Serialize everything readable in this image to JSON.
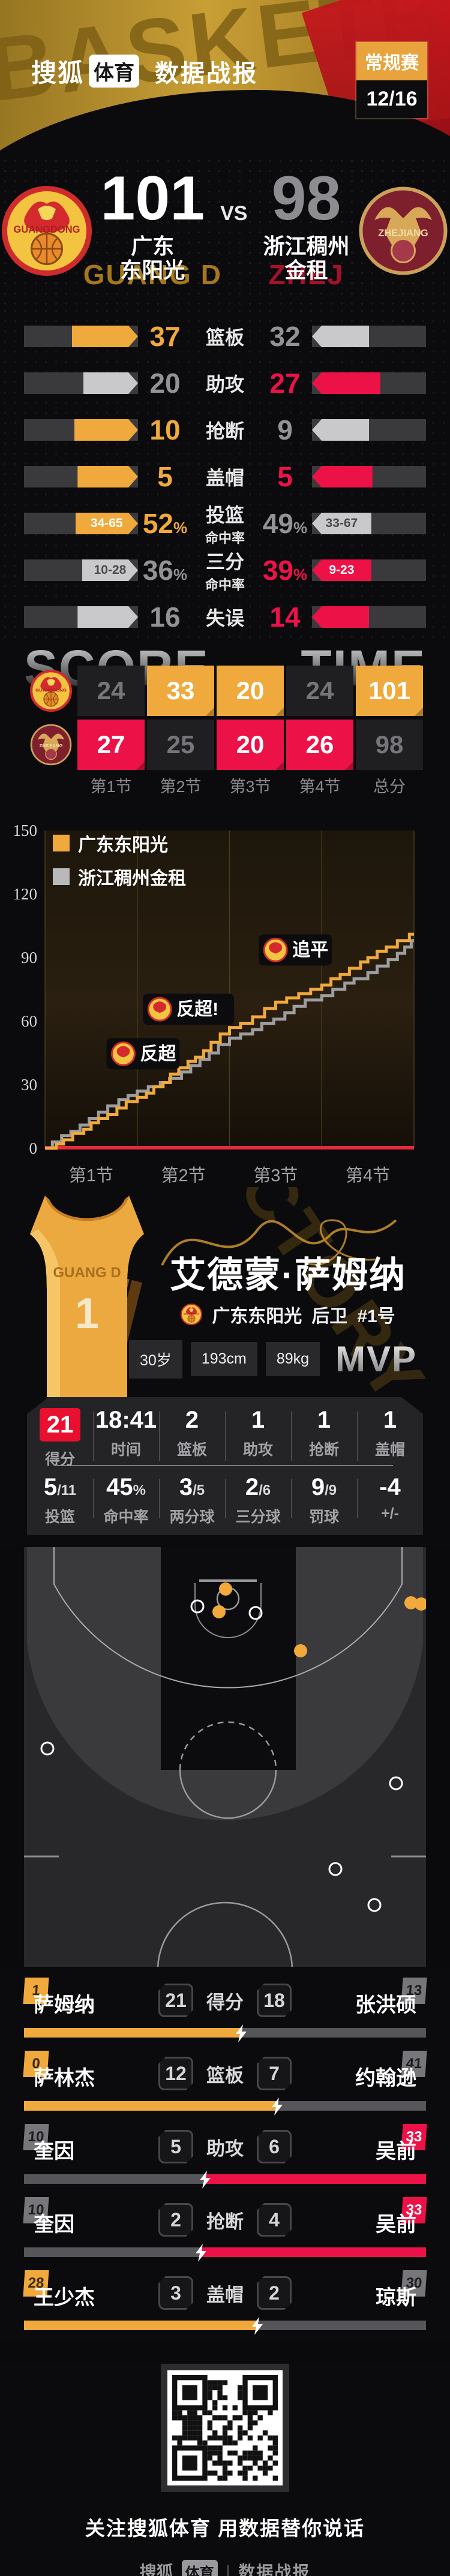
{
  "header": {
    "brand_sohu": "搜狐",
    "brand_sports": "体育",
    "brand_product": "数据战报",
    "stage_label": "常规赛",
    "date_label": "12/16",
    "ghost_text": "BASKETBALL"
  },
  "scoreboard": {
    "vs_label": "VS",
    "home": {
      "score": "101",
      "name_line1": "广东",
      "name_line2": "东阳光",
      "ghost": "GUANG D",
      "logo_text": "GUANGDONG"
    },
    "away": {
      "score": "98",
      "name_line1": "浙江稠州",
      "name_line2": "金租",
      "ghost": "ZHEJ",
      "logo_text": "ZHEJIANG"
    }
  },
  "team_stats": {
    "rows": [
      {
        "label": [
          "篮板"
        ],
        "home": {
          "main": "37",
          "sub": ""
        },
        "away": {
          "main": "32",
          "sub": ""
        },
        "home_win": true,
        "away_win": false,
        "bar_home_text": "",
        "bar_away_text": "",
        "home_fill": 58,
        "away_fill": 50
      },
      {
        "label": [
          "助攻"
        ],
        "home": {
          "main": "20",
          "sub": ""
        },
        "away": {
          "main": "27",
          "sub": ""
        },
        "home_win": false,
        "away_win": true,
        "bar_home_text": "",
        "bar_away_text": "",
        "home_fill": 48,
        "away_fill": 60
      },
      {
        "label": [
          "抢断"
        ],
        "home": {
          "main": "10",
          "sub": ""
        },
        "away": {
          "main": "9",
          "sub": ""
        },
        "home_win": true,
        "away_win": false,
        "bar_home_text": "",
        "bar_away_text": "",
        "home_fill": 56,
        "away_fill": 50
      },
      {
        "label": [
          "盖帽"
        ],
        "home": {
          "main": "5",
          "sub": ""
        },
        "away": {
          "main": "5",
          "sub": ""
        },
        "home_win": true,
        "away_win": true,
        "bar_home_text": "",
        "bar_away_text": "",
        "home_fill": 53,
        "away_fill": 53
      },
      {
        "label": [
          "投篮",
          "命中率"
        ],
        "home": {
          "main": "52",
          "sub": "%"
        },
        "away": {
          "main": "49",
          "sub": "%"
        },
        "home_win": true,
        "away_win": false,
        "bar_home_text": "34-65",
        "bar_away_text": "33-67",
        "home_fill": 55,
        "away_fill": 52
      },
      {
        "label": [
          "三分",
          "命中率"
        ],
        "home": {
          "main": "36",
          "sub": "%"
        },
        "away": {
          "main": "39",
          "sub": "%"
        },
        "home_win": false,
        "away_win": true,
        "bar_home_text": "10-28",
        "bar_away_text": "9-23",
        "home_fill": 49,
        "away_fill": 52
      },
      {
        "label": [
          "失误"
        ],
        "home": {
          "main": "16",
          "sub": ""
        },
        "away": {
          "main": "14",
          "sub": ""
        },
        "home_win": false,
        "away_win": true,
        "bar_home_text": "",
        "bar_away_text": "",
        "home_fill": 53,
        "away_fill": 50
      }
    ]
  },
  "quarters": {
    "ghost_left": "SCORE",
    "ghost_right": "TIME",
    "labels": [
      "第1节",
      "第2节",
      "第3节",
      "第4节",
      "总分"
    ],
    "home_scores": [
      "24",
      "33",
      "20",
      "24",
      "101"
    ],
    "away_scores": [
      "27",
      "25",
      "20",
      "26",
      "98"
    ],
    "home_highlight": [
      false,
      true,
      true,
      false,
      true
    ],
    "away_highlight": [
      true,
      false,
      true,
      true,
      false
    ]
  },
  "chart_data": {
    "type": "line",
    "subtype": "step-score-progression",
    "legend": [
      {
        "label": "广东东阳光",
        "color": "#f0a93c"
      },
      {
        "label": "浙江稠州金租",
        "color": "#b9b9bc"
      }
    ],
    "ylim": [
      0,
      150
    ],
    "yticks": [
      0,
      30,
      60,
      90,
      120,
      150
    ],
    "x_labels": [
      "第1节",
      "第2节",
      "第3节",
      "第4节"
    ],
    "series": [
      {
        "name": "广东东阳光",
        "color": "#f0a93c",
        "steps": [
          [
            0,
            0
          ],
          [
            0.12,
            2
          ],
          [
            0.2,
            4
          ],
          [
            0.3,
            7
          ],
          [
            0.42,
            9
          ],
          [
            0.5,
            12
          ],
          [
            0.58,
            14
          ],
          [
            0.68,
            16
          ],
          [
            0.78,
            19
          ],
          [
            0.88,
            22
          ],
          [
            1,
            24
          ],
          [
            1.1,
            26
          ],
          [
            1.18,
            29
          ],
          [
            1.28,
            31
          ],
          [
            1.36,
            35
          ],
          [
            1.45,
            38
          ],
          [
            1.55,
            41
          ],
          [
            1.63,
            43
          ],
          [
            1.72,
            46
          ],
          [
            1.8,
            50
          ],
          [
            1.9,
            54
          ],
          [
            2,
            57
          ],
          [
            2.12,
            59
          ],
          [
            2.25,
            62
          ],
          [
            2.38,
            66
          ],
          [
            2.5,
            69
          ],
          [
            2.62,
            71
          ],
          [
            2.75,
            73
          ],
          [
            2.88,
            75
          ],
          [
            3,
            77
          ],
          [
            3.1,
            80
          ],
          [
            3.2,
            82
          ],
          [
            3.3,
            85
          ],
          [
            3.42,
            88
          ],
          [
            3.5,
            90
          ],
          [
            3.6,
            93
          ],
          [
            3.7,
            95
          ],
          [
            3.82,
            98
          ],
          [
            3.95,
            101
          ],
          [
            4,
            101
          ]
        ]
      },
      {
        "name": "浙江稠州金租",
        "color": "#9e9ea0",
        "steps": [
          [
            0,
            0
          ],
          [
            0.08,
            3
          ],
          [
            0.18,
            6
          ],
          [
            0.28,
            8
          ],
          [
            0.38,
            11
          ],
          [
            0.48,
            14
          ],
          [
            0.58,
            17
          ],
          [
            0.68,
            20
          ],
          [
            0.8,
            23
          ],
          [
            0.9,
            25
          ],
          [
            1,
            27
          ],
          [
            1.12,
            29
          ],
          [
            1.25,
            31
          ],
          [
            1.35,
            33
          ],
          [
            1.48,
            36
          ],
          [
            1.58,
            39
          ],
          [
            1.68,
            42
          ],
          [
            1.78,
            45
          ],
          [
            1.88,
            49
          ],
          [
            2,
            52
          ],
          [
            2.12,
            54
          ],
          [
            2.25,
            56
          ],
          [
            2.35,
            59
          ],
          [
            2.48,
            61
          ],
          [
            2.6,
            64
          ],
          [
            2.7,
            67
          ],
          [
            2.82,
            70
          ],
          [
            3,
            72
          ],
          [
            3.12,
            75
          ],
          [
            3.25,
            78
          ],
          [
            3.35,
            80
          ],
          [
            3.5,
            83
          ],
          [
            3.6,
            86
          ],
          [
            3.72,
            89
          ],
          [
            3.82,
            92
          ],
          [
            3.9,
            95
          ],
          [
            3.97,
            98
          ],
          [
            4,
            98
          ]
        ]
      }
    ],
    "annotations": [
      {
        "t": 1.33,
        "score": 35,
        "label": "反超"
      },
      {
        "t": 1.92,
        "score": 56,
        "label": "反超!"
      },
      {
        "t": 2.98,
        "score": 84,
        "label": "追平"
      }
    ]
  },
  "mvp": {
    "name": "艾德蒙·萨姆纳",
    "jersey": {
      "team": "GUANG D",
      "number": "1"
    },
    "team": "广东东阳光",
    "position": "后卫",
    "shirt_no": "#1号",
    "tags": [
      "30岁",
      "193cm",
      "89kg"
    ],
    "badge": "MVP",
    "ghost": "VICTORY",
    "stats_row1": [
      {
        "main": "21",
        "sub": "",
        "label": "得分",
        "highlight": true
      },
      {
        "main": "18:41",
        "sub": "",
        "label": "时间",
        "highlight": false
      },
      {
        "main": "2",
        "sub": "",
        "label": "篮板",
        "highlight": false
      },
      {
        "main": "1",
        "sub": "",
        "label": "助攻",
        "highlight": false
      },
      {
        "main": "1",
        "sub": "",
        "label": "抢断",
        "highlight": false
      },
      {
        "main": "1",
        "sub": "",
        "label": "盖帽",
        "highlight": false
      }
    ],
    "stats_row2": [
      {
        "main": "5",
        "sub": "/11",
        "label": "投篮",
        "highlight": false
      },
      {
        "main": "45",
        "sub": "%",
        "label": "命中率",
        "highlight": false
      },
      {
        "main": "3",
        "sub": "/5",
        "label": "两分球",
        "highlight": false
      },
      {
        "main": "2",
        "sub": "/6",
        "label": "三分球",
        "highlight": false
      },
      {
        "main": "9",
        "sub": "/9",
        "label": "罚球",
        "highlight": false
      },
      {
        "main": "-4",
        "sub": "",
        "label": "+/-",
        "highlight": false
      }
    ]
  },
  "shot_chart": {
    "made_color": "#f2a93b",
    "missed_style": "hollow-white",
    "made": [
      [
        336,
        70
      ],
      [
        325,
        108
      ],
      [
        645,
        93
      ],
      [
        662,
        95
      ],
      [
        461,
        173
      ]
    ],
    "missed": [
      [
        289,
        99
      ],
      [
        386,
        110
      ],
      [
        39,
        336
      ],
      [
        620,
        394
      ],
      [
        519,
        537
      ],
      [
        584,
        597
      ]
    ]
  },
  "leaders": {
    "rows": [
      {
        "stat": "得分",
        "home": {
          "name": "萨姆纳",
          "num": "1",
          "win": true,
          "value": "21"
        },
        "away": {
          "name": "张洪硕",
          "num": "13",
          "win": false,
          "value": "18"
        },
        "left_pct": 54
      },
      {
        "stat": "篮板",
        "home": {
          "name": "萨林杰",
          "num": "0",
          "win": true,
          "value": "12"
        },
        "away": {
          "name": "约翰逊",
          "num": "41",
          "win": false,
          "value": "7"
        },
        "left_pct": 63
      },
      {
        "stat": "助攻",
        "home": {
          "name": "奎因",
          "num": "10",
          "win": false,
          "value": "5"
        },
        "away": {
          "name": "吴前",
          "num": "33",
          "win": true,
          "value": "6"
        },
        "left_pct": 45
      },
      {
        "stat": "抢断",
        "home": {
          "name": "奎因",
          "num": "10",
          "win": false,
          "value": "2"
        },
        "away": {
          "name": "吴前",
          "num": "33",
          "win": true,
          "value": "4"
        },
        "left_pct": 44
      },
      {
        "stat": "盖帽",
        "home": {
          "name": "王少杰",
          "num": "28",
          "win": true,
          "value": "3"
        },
        "away": {
          "name": "琼斯",
          "num": "30",
          "win": false,
          "value": "2"
        },
        "left_pct": 58
      }
    ]
  },
  "footer": {
    "caption": "关注搜狐体育 用数据替你说话",
    "brand_sohu": "搜狐",
    "brand_sports": "体育",
    "separator": "|",
    "brand_product": "数据战报"
  },
  "colors": {
    "home_accent": "#f0a93c",
    "away_accent": "#ec1248",
    "neutral_bar": "#c9c9cc",
    "track": "#3a3a3d"
  }
}
